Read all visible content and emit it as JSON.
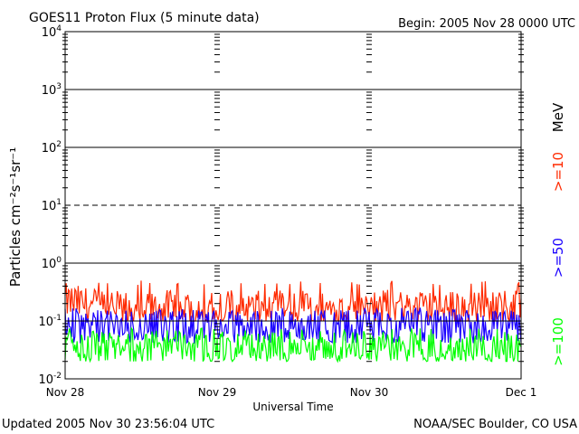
{
  "chart_data": {
    "type": "line",
    "title": "GOES11 Proton Flux (5 minute data)",
    "begin_label": "Begin: 2005 Nov 28 0000 UTC",
    "xlabel": "Universal Time",
    "ylabel": "Particles cm⁻²s⁻¹sr⁻¹",
    "x_ticks": [
      "Nov 28",
      "Nov 29",
      "Nov 30",
      "Dec 1"
    ],
    "xlim": [
      0,
      3
    ],
    "x_unit": "days since 2005 Nov 28 0000 UTC",
    "y_scale": "log",
    "ylim": [
      0.01,
      10000
    ],
    "y_tick_labels": [
      {
        "base": "10",
        "exp": "-2"
      },
      {
        "base": "10",
        "exp": "-1"
      },
      {
        "base": "10",
        "exp": "0"
      },
      {
        "base": "10",
        "exp": "1"
      },
      {
        "base": "10",
        "exp": "2"
      },
      {
        "base": "10",
        "exp": "3"
      },
      {
        "base": "10",
        "exp": "4"
      }
    ],
    "threshold_lines": [
      {
        "value": 10,
        "style": "dashed"
      },
      {
        "value": 1,
        "style": "solid"
      },
      {
        "value": 100,
        "style": "solid"
      },
      {
        "value": 1000,
        "style": "solid"
      },
      {
        "value": 0.1,
        "style": "solid"
      }
    ],
    "unit_label": "MeV",
    "series": [
      {
        "name": ">=10",
        "color": "#ff2a00",
        "x": [
          0,
          0.25,
          0.5,
          0.75,
          1.0,
          1.25,
          1.5,
          1.75,
          2.0,
          2.25,
          2.5,
          2.75,
          3.0
        ],
        "values": [
          0.22,
          0.17,
          0.16,
          0.17,
          0.18,
          0.16,
          0.17,
          0.16,
          0.18,
          0.17,
          0.16,
          0.17,
          0.18
        ],
        "noise_range": [
          0.1,
          0.5
        ]
      },
      {
        "name": ">=50",
        "color": "#1a00ff",
        "x": [
          0,
          0.25,
          0.5,
          0.75,
          1.0,
          1.25,
          1.5,
          1.75,
          2.0,
          2.25,
          2.5,
          2.75,
          3.0
        ],
        "values": [
          0.09,
          0.08,
          0.08,
          0.08,
          0.08,
          0.08,
          0.08,
          0.08,
          0.08,
          0.08,
          0.08,
          0.08,
          0.08
        ],
        "noise_range": [
          0.04,
          0.17
        ]
      },
      {
        "name": ">=100",
        "color": "#00ff00",
        "x": [
          0,
          0.25,
          0.5,
          0.75,
          1.0,
          1.25,
          1.5,
          1.75,
          2.0,
          2.25,
          2.5,
          2.75,
          3.0
        ],
        "values": [
          0.035,
          0.035,
          0.033,
          0.035,
          0.034,
          0.035,
          0.034,
          0.035,
          0.034,
          0.035,
          0.034,
          0.035,
          0.034
        ],
        "noise_range": [
          0.02,
          0.075
        ]
      }
    ],
    "grid": false,
    "legend": "right, vertical"
  },
  "footer": {
    "updated": "Updated 2005 Nov 30 23:56:04 UTC",
    "source": "NOAA/SEC Boulder, CO USA"
  }
}
